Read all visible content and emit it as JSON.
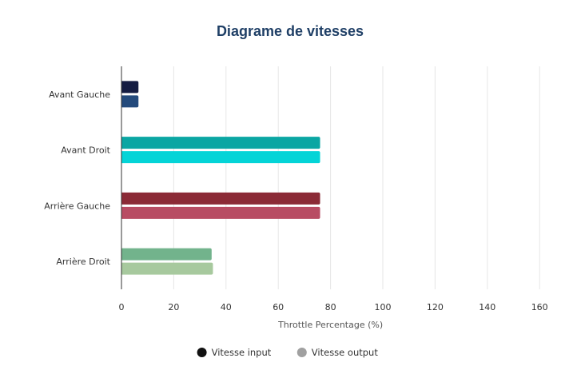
{
  "chart_data": {
    "type": "bar",
    "orientation": "horizontal",
    "title": "Diagrame de vitesses",
    "categories": [
      "Avant Gauche",
      "Avant Droit",
      "Arrière Gauche",
      "Arrière Droit"
    ],
    "xlabel": "Throttle Percentage (%)",
    "ylabel": "",
    "xlim": [
      0,
      160
    ],
    "xticks": [
      0,
      20,
      40,
      60,
      80,
      100,
      120,
      140,
      160
    ],
    "grid": true,
    "legend_position": "bottom-center",
    "series": [
      {
        "name": "Vitesse input",
        "values": [
          6.5,
          76,
          76,
          34.5
        ],
        "colors": [
          "#141c42",
          "#0aa6a3",
          "#8b2a36",
          "#72b38c"
        ],
        "legend_color": "#111111"
      },
      {
        "name": "Vitesse output",
        "values": [
          6.5,
          76,
          76,
          35
        ],
        "colors": [
          "#234a7c",
          "#04d4d7",
          "#b84c63",
          "#a7c99e"
        ],
        "legend_color": "#a0a0a0"
      }
    ]
  }
}
